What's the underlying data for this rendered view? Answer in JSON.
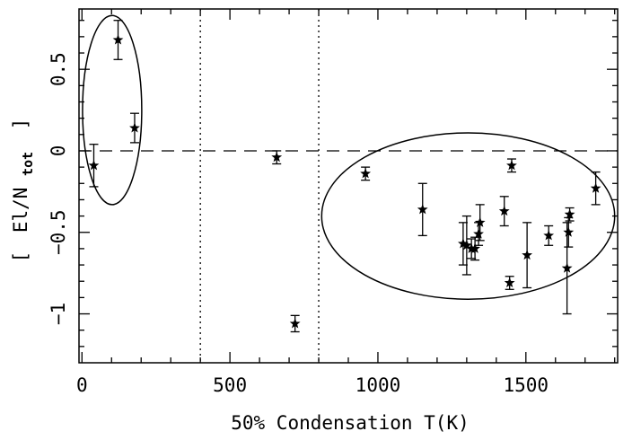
{
  "chart_data": {
    "type": "scatter",
    "title": "",
    "xlabel": "50% Condensation T(K)",
    "ylabel": {
      "open_bracket": "[",
      "main": "El/N",
      "subscript": "tot",
      "close_bracket": "]"
    },
    "xlim": [
      -10,
      1810
    ],
    "ylim": [
      -1.3,
      0.87
    ],
    "x_ticks": [
      0,
      500,
      1000,
      1500
    ],
    "x_tick_labels": [
      "0",
      "500",
      "1000",
      "1500"
    ],
    "y_ticks": [
      -1,
      -0.5,
      0,
      0.5
    ],
    "y_tick_labels": [
      "−1",
      "−0.5",
      "0",
      "0.5"
    ],
    "grid": false,
    "legend": "none",
    "marker": "star",
    "points": [
      {
        "x": 40,
        "y": -0.09,
        "err": 0.13
      },
      {
        "x": 122,
        "y": 0.68,
        "err": 0.12
      },
      {
        "x": 178,
        "y": 0.14,
        "err": 0.09
      },
      {
        "x": 658,
        "y": -0.04,
        "err": 0.04
      },
      {
        "x": 720,
        "y": -1.06,
        "err": 0.05
      },
      {
        "x": 958,
        "y": -0.14,
        "err": 0.04
      },
      {
        "x": 1151,
        "y": -0.36,
        "err": 0.16
      },
      {
        "x": 1288,
        "y": -0.57,
        "err": 0.13
      },
      {
        "x": 1300,
        "y": -0.58,
        "err": 0.18
      },
      {
        "x": 1316,
        "y": -0.6,
        "err": 0.06
      },
      {
        "x": 1328,
        "y": -0.6,
        "err": 0.07
      },
      {
        "x": 1340,
        "y": -0.51,
        "err": 0.07
      },
      {
        "x": 1345,
        "y": -0.44,
        "err": 0.11
      },
      {
        "x": 1427,
        "y": -0.37,
        "err": 0.09
      },
      {
        "x": 1445,
        "y": -0.81,
        "err": 0.04
      },
      {
        "x": 1452,
        "y": -0.09,
        "err": 0.04
      },
      {
        "x": 1504,
        "y": -0.64,
        "err": 0.2
      },
      {
        "x": 1577,
        "y": -0.52,
        "err": 0.06
      },
      {
        "x": 1639,
        "y": -0.72,
        "err": 0.28
      },
      {
        "x": 1644,
        "y": -0.5,
        "err": 0.09
      },
      {
        "x": 1648,
        "y": -0.39,
        "err": 0.04
      },
      {
        "x": 1736,
        "y": -0.23,
        "err": 0.1
      }
    ],
    "reference_lines": [
      {
        "orientation": "horizontal",
        "value": 0,
        "style": "dashed"
      },
      {
        "orientation": "vertical",
        "value": 400,
        "style": "dotted"
      },
      {
        "orientation": "vertical",
        "value": 800,
        "style": "dotted"
      }
    ],
    "ellipses": [
      {
        "cx": 102,
        "cy": 0.25,
        "rx": 200,
        "ry": 0.58
      },
      {
        "cx": 1305,
        "cy": -0.4,
        "rx": 990,
        "ry": 0.51
      }
    ]
  }
}
